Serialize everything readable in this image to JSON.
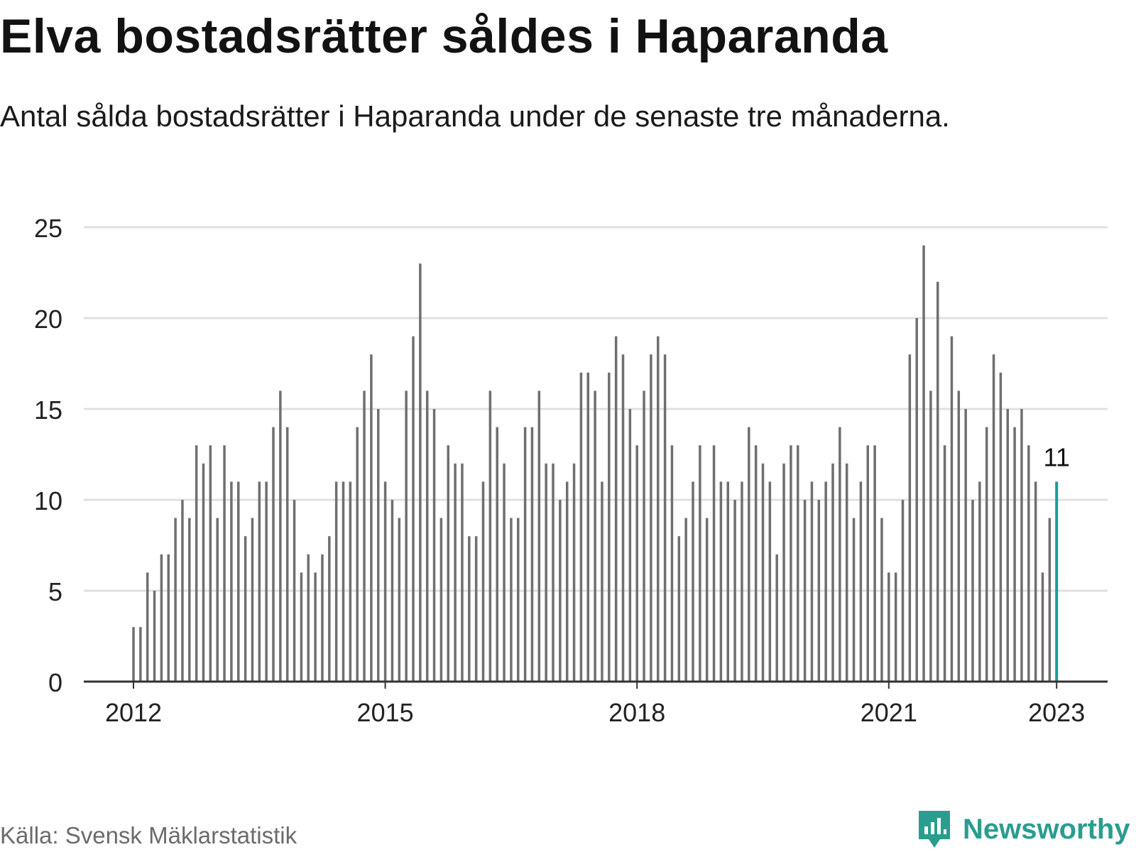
{
  "title": "Elva bostadsrätter såldes i Haparanda",
  "subtitle": "Antal sålda bostadsrätter i Haparanda under de senaste tre månaderna.",
  "source": "Källa: Svensk Mäklarstatistik",
  "brand": {
    "name": "Newsworthy",
    "icon": "newsworthy-logo-icon",
    "color": "#2a9d8f"
  },
  "colors": {
    "bar": "#6f6f6f",
    "highlight": "#1a9e96",
    "grid": "#e0e0e0",
    "axis": "#333333"
  },
  "chart_data": {
    "type": "bar",
    "title": "Elva bostadsrätter såldes i Haparanda",
    "xlabel": "",
    "ylabel": "",
    "ylim": [
      0,
      25
    ],
    "yticks": [
      0,
      5,
      10,
      15,
      20,
      25
    ],
    "xticks": [
      {
        "label": "2012",
        "index": 0
      },
      {
        "label": "2015",
        "index": 36
      },
      {
        "label": "2018",
        "index": 72
      },
      {
        "label": "2021",
        "index": 108
      },
      {
        "label": "2023",
        "index": 132
      }
    ],
    "start": "2012-01",
    "end": "2023-01",
    "values": [
      3,
      3,
      6,
      5,
      7,
      7,
      9,
      10,
      9,
      13,
      12,
      13,
      9,
      13,
      11,
      11,
      8,
      9,
      11,
      11,
      14,
      16,
      14,
      10,
      6,
      7,
      6,
      7,
      8,
      11,
      11,
      11,
      14,
      16,
      18,
      15,
      11,
      10,
      9,
      16,
      19,
      23,
      16,
      15,
      9,
      13,
      12,
      12,
      8,
      8,
      11,
      16,
      14,
      12,
      9,
      9,
      14,
      14,
      16,
      12,
      12,
      10,
      11,
      12,
      17,
      17,
      16,
      11,
      17,
      19,
      18,
      15,
      13,
      16,
      18,
      19,
      18,
      13,
      8,
      9,
      11,
      13,
      9,
      13,
      11,
      11,
      10,
      11,
      14,
      13,
      12,
      11,
      7,
      12,
      13,
      13,
      10,
      11,
      10,
      11,
      12,
      14,
      12,
      9,
      11,
      13,
      13,
      9,
      6,
      6,
      10,
      18,
      20,
      24,
      16,
      22,
      13,
      19,
      16,
      15,
      10,
      11,
      14,
      18,
      17,
      15,
      14,
      15,
      13,
      11,
      6,
      9,
      11
    ],
    "highlight_label": "11"
  }
}
